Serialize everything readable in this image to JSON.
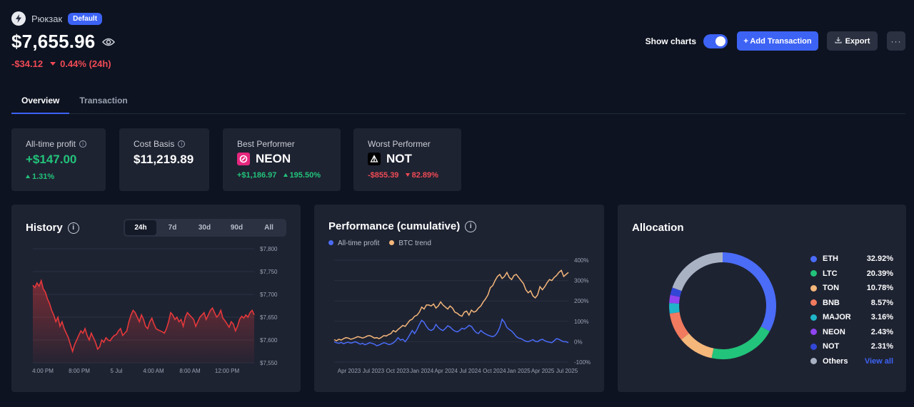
{
  "wallet": {
    "name": "Рюкзак",
    "badge": "Default"
  },
  "balance": {
    "amount": "$7,655.96",
    "change_value": "-$34.12",
    "change_pct": "0.44% (24h)"
  },
  "actions": {
    "show_charts_label": "Show charts",
    "show_charts_on": true,
    "add_label": "+ Add Transaction",
    "export_label": "Export",
    "more_label": "···"
  },
  "tabs": [
    {
      "label": "Overview",
      "active": true
    },
    {
      "label": "Transaction",
      "active": false
    }
  ],
  "stats": {
    "all_time": {
      "label": "All-time profit",
      "value": "+$147.00",
      "pct": "1.31%"
    },
    "cost_basis": {
      "label": "Cost Basis",
      "value": "$11,219.89"
    },
    "best": {
      "label": "Best Performer",
      "coin": "NEON",
      "value": "+$1,186.97",
      "pct": "195.50%"
    },
    "worst": {
      "label": "Worst Performer",
      "coin": "NOT",
      "value": "-$855.39",
      "pct": "82.89%"
    }
  },
  "history": {
    "title": "History",
    "ranges": [
      "24h",
      "7d",
      "30d",
      "90d",
      "All"
    ],
    "active_range": "24h"
  },
  "performance": {
    "title": "Performance (cumulative)",
    "legend": [
      "All-time profit",
      "BTC trend"
    ]
  },
  "allocation": {
    "title": "Allocation",
    "items": [
      {
        "name": "ETH",
        "pct": "32.92%",
        "value": 32.92,
        "color": "#4a6cf7"
      },
      {
        "name": "LTC",
        "pct": "20.39%",
        "value": 20.39,
        "color": "#22c37a"
      },
      {
        "name": "TON",
        "pct": "10.78%",
        "value": 10.78,
        "color": "#f5b77a"
      },
      {
        "name": "BNB",
        "pct": "8.57%",
        "value": 8.57,
        "color": "#f27a5e"
      },
      {
        "name": "MAJOR",
        "pct": "3.16%",
        "value": 3.16,
        "color": "#1fb5c9"
      },
      {
        "name": "NEON",
        "pct": "2.43%",
        "value": 2.43,
        "color": "#8e44f0"
      },
      {
        "name": "NOT",
        "pct": "2.31%",
        "value": 2.31,
        "color": "#3247d6"
      },
      {
        "name": "Others",
        "pct": "",
        "value": 19.44,
        "color": "#a9b2c3"
      }
    ],
    "view_all_label": "View all"
  },
  "chart_data": [
    {
      "type": "area",
      "title": "History",
      "x_tick_labels": [
        "4:00 PM",
        "8:00 PM",
        "5 Jul",
        "4:00 AM",
        "8:00 AM",
        "12:00 PM"
      ],
      "y_tick_labels": [
        "$7,800",
        "$7,750",
        "$7,700",
        "$7,650",
        "$7,600",
        "$7,550"
      ],
      "ylim": [
        7550,
        7800
      ],
      "color": "#e5383b",
      "series": [
        {
          "values": [
            7720,
            7715,
            7725,
            7718,
            7730,
            7712,
            7705,
            7690,
            7680,
            7665,
            7655,
            7640,
            7650,
            7630,
            7640,
            7625,
            7615,
            7605,
            7590,
            7575,
            7590,
            7600,
            7610,
            7620,
            7615,
            7625,
            7610,
            7600,
            7615,
            7605,
            7595,
            7580,
            7585,
            7600,
            7595,
            7605,
            7600,
            7598,
            7605,
            7610,
            7612,
            7620,
            7625,
            7610,
            7615,
            7620,
            7640,
            7655,
            7665,
            7660,
            7650,
            7640,
            7655,
            7645,
            7630,
            7625,
            7640,
            7648,
            7635,
            7625,
            7622,
            7620,
            7618,
            7615,
            7625,
            7640,
            7660,
            7655,
            7645,
            7650,
            7640,
            7645,
            7630,
            7650,
            7660,
            7655,
            7650,
            7645,
            7630,
            7640,
            7650,
            7655,
            7660,
            7645,
            7655,
            7665,
            7670,
            7660,
            7650,
            7655,
            7665,
            7648,
            7642,
            7635,
            7628,
            7640,
            7635,
            7620,
            7630,
            7645,
            7652,
            7648,
            7655,
            7650,
            7660,
            7665,
            7655
          ]
        }
      ]
    },
    {
      "type": "line",
      "title": "Performance (cumulative)",
      "x_tick_labels": [
        "Apr 2023",
        "Jul 2023",
        "Oct 2023",
        "Jan 2024",
        "Apr 2024",
        "Jul 2024",
        "Oct 2024",
        "Jan 2025",
        "Apr 2025",
        "Jul 2025"
      ],
      "y_tick_labels": [
        "400%",
        "300%",
        "200%",
        "100%",
        "0%",
        "-100%"
      ],
      "ylim": [
        -100,
        400
      ],
      "series": [
        {
          "name": "All-time profit",
          "color": "#4a6cf7",
          "values": [
            0,
            -5,
            -8,
            -3,
            -10,
            -5,
            -2,
            -7,
            -4,
            0,
            -6,
            -12,
            -8,
            -15,
            -10,
            -5,
            -8,
            -12,
            -20,
            -16,
            -10,
            -5,
            -8,
            -14,
            -12,
            -6,
            5,
            20,
            8,
            12,
            0,
            15,
            35,
            55,
            40,
            60,
            85,
            105,
            95,
            75,
            60,
            55,
            62,
            85,
            70,
            60,
            55,
            65,
            78,
            72,
            60,
            52,
            48,
            55,
            66,
            62,
            70,
            80,
            75,
            58,
            45,
            40,
            55,
            45,
            38,
            32,
            28,
            25,
            30,
            45,
            70,
            110,
            95,
            70,
            60,
            52,
            40,
            25,
            18,
            15,
            8,
            2,
            0,
            5,
            10,
            2,
            0,
            8,
            12,
            5,
            0,
            -2,
            -5,
            5,
            15,
            12,
            5,
            0,
            0,
            -5
          ]
        },
        {
          "name": "BTC trend",
          "color": "#f5b77a",
          "values": [
            10,
            5,
            12,
            8,
            15,
            20,
            18,
            12,
            15,
            20,
            25,
            22,
            18,
            22,
            28,
            30,
            25,
            18,
            20,
            15,
            22,
            30,
            28,
            35,
            40,
            55,
            48,
            60,
            70,
            80,
            75,
            90,
            105,
            110,
            125,
            130,
            145,
            170,
            160,
            180,
            180,
            175,
            185,
            165,
            175,
            195,
            180,
            170,
            160,
            175,
            165,
            145,
            140,
            130,
            125,
            145,
            150,
            130,
            155,
            145,
            150,
            165,
            175,
            195,
            210,
            230,
            265,
            275,
            300,
            320,
            330,
            310,
            320,
            340,
            315,
            305,
            325,
            330,
            315,
            300,
            285,
            255,
            240,
            250,
            225,
            215,
            230,
            270,
            255,
            270,
            290,
            305,
            300,
            315,
            325,
            340,
            350,
            320,
            330,
            340
          ]
        }
      ]
    },
    {
      "type": "pie",
      "title": "Allocation",
      "categories": [
        "ETH",
        "LTC",
        "TON",
        "BNB",
        "MAJOR",
        "NEON",
        "NOT",
        "Others"
      ],
      "values": [
        32.92,
        20.39,
        10.78,
        8.57,
        3.16,
        2.43,
        2.31,
        19.44
      ]
    }
  ]
}
